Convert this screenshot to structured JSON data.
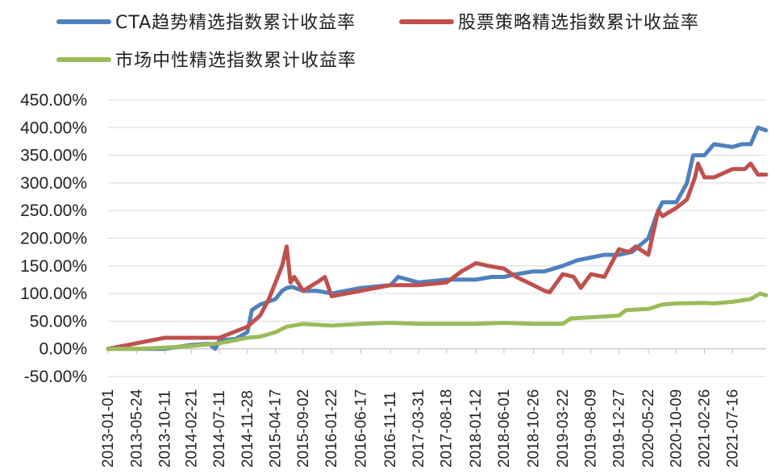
{
  "chart_data": {
    "type": "line",
    "title": "",
    "xlabel": "",
    "ylabel": "",
    "ylim": [
      -0.5,
      4.5
    ],
    "y_ticks": [
      "450.00%",
      "400.00%",
      "350.00%",
      "300.00%",
      "250.00%",
      "200.00%",
      "150.00%",
      "100.00%",
      "50.00%",
      "0.00%",
      "-50.00%"
    ],
    "y_tick_values": [
      4.5,
      4.0,
      3.5,
      3.0,
      2.5,
      2.0,
      1.5,
      1.0,
      0.5,
      0.0,
      -0.5
    ],
    "x_range": [
      "2013-01-01",
      "2021-12-31"
    ],
    "x_ticks": [
      "2013-01-01",
      "2013-05-24",
      "2013-10-11",
      "2014-02-21",
      "2014-07-11",
      "2014-11-28",
      "2015-04-17",
      "2015-09-02",
      "2016-01-22",
      "2016-06-17",
      "2016-11-11",
      "2017-03-31",
      "2017-08-18",
      "2018-01-12",
      "2018-06-01",
      "2018-10-26",
      "2019-03-22",
      "2019-08-09",
      "2019-12-27",
      "2020-05-22",
      "2020-10-09",
      "2021-02-26",
      "2021-07-16"
    ],
    "gridlines": "horizontal",
    "legend_position": "top-left",
    "series": [
      {
        "name": "CTA趋势精选指数累计收益率",
        "color": "#4F81BD",
        "x": [
          "2013-01-01",
          "2013-05-24",
          "2013-10-11",
          "2014-02-21",
          "2014-05-20",
          "2014-06-20",
          "2014-07-11",
          "2014-09-30",
          "2014-11-28",
          "2014-12-20",
          "2015-01-30",
          "2015-04-17",
          "2015-05-20",
          "2015-06-12",
          "2015-07-08",
          "2015-09-02",
          "2015-11-10",
          "2016-01-22",
          "2016-06-17",
          "2016-11-11",
          "2016-12-20",
          "2017-03-31",
          "2017-08-18",
          "2018-01-12",
          "2018-04-01",
          "2018-06-01",
          "2018-08-01",
          "2018-10-26",
          "2018-12-20",
          "2019-03-22",
          "2019-06-01",
          "2019-08-09",
          "2019-10-15",
          "2019-12-27",
          "2020-03-01",
          "2020-05-22",
          "2020-07-10",
          "2020-07-31",
          "2020-10-09",
          "2020-12-01",
          "2021-01-01",
          "2021-02-26",
          "2021-04-15",
          "2021-07-16",
          "2021-09-01",
          "2021-10-15",
          "2021-11-20",
          "2021-12-31"
        ],
        "values": [
          0.0,
          0.0,
          0.0,
          0.07,
          0.09,
          0.0,
          0.15,
          0.18,
          0.3,
          0.7,
          0.8,
          0.9,
          1.05,
          1.1,
          1.12,
          1.05,
          1.05,
          1.0,
          1.1,
          1.15,
          1.3,
          1.2,
          1.25,
          1.25,
          1.3,
          1.3,
          1.35,
          1.4,
          1.4,
          1.5,
          1.6,
          1.65,
          1.7,
          1.7,
          1.75,
          2.0,
          2.5,
          2.65,
          2.65,
          3.0,
          3.5,
          3.5,
          3.7,
          3.65,
          3.7,
          3.7,
          4.0,
          3.95
        ]
      },
      {
        "name": "股票策略精选指数累计收益率",
        "color": "#C0504D",
        "x": [
          "2013-01-01",
          "2013-05-24",
          "2013-10-11",
          "2014-02-21",
          "2014-07-11",
          "2014-11-28",
          "2015-01-30",
          "2015-03-15",
          "2015-04-17",
          "2015-05-20",
          "2015-06-12",
          "2015-07-01",
          "2015-07-20",
          "2015-09-02",
          "2015-11-10",
          "2015-12-20",
          "2016-01-22",
          "2016-06-17",
          "2016-11-11",
          "2017-03-31",
          "2017-08-18",
          "2017-11-01",
          "2018-01-12",
          "2018-03-15",
          "2018-06-01",
          "2018-08-01",
          "2018-10-26",
          "2018-12-20",
          "2019-01-15",
          "2019-03-22",
          "2019-05-15",
          "2019-06-20",
          "2019-08-09",
          "2019-10-15",
          "2019-12-27",
          "2020-02-15",
          "2020-03-20",
          "2020-05-22",
          "2020-07-10",
          "2020-08-01",
          "2020-10-09",
          "2020-12-01",
          "2021-01-10",
          "2021-01-25",
          "2021-02-26",
          "2021-04-15",
          "2021-07-16",
          "2021-09-15",
          "2021-10-15",
          "2021-11-20",
          "2021-12-31"
        ],
        "values": [
          0.0,
          0.1,
          0.2,
          0.2,
          0.2,
          0.4,
          0.6,
          0.9,
          1.2,
          1.5,
          1.85,
          1.2,
          1.3,
          1.05,
          1.2,
          1.3,
          0.95,
          1.05,
          1.15,
          1.15,
          1.2,
          1.4,
          1.55,
          1.5,
          1.45,
          1.3,
          1.15,
          1.05,
          1.02,
          1.35,
          1.3,
          1.1,
          1.35,
          1.3,
          1.8,
          1.75,
          1.85,
          1.7,
          2.5,
          2.4,
          2.55,
          2.7,
          3.1,
          3.35,
          3.1,
          3.1,
          3.25,
          3.25,
          3.35,
          3.15,
          3.15
        ]
      },
      {
        "name": "市场中性精选指数累计收益率",
        "color": "#9BBB59",
        "x": [
          "2013-01-01",
          "2013-05-24",
          "2013-10-11",
          "2014-02-21",
          "2014-07-11",
          "2014-11-28",
          "2015-01-30",
          "2015-04-17",
          "2015-06-12",
          "2015-09-02",
          "2016-01-22",
          "2016-06-17",
          "2016-11-11",
          "2017-03-31",
          "2017-08-18",
          "2018-01-12",
          "2018-06-01",
          "2018-10-26",
          "2019-01-15",
          "2019-03-22",
          "2019-05-01",
          "2019-08-09",
          "2019-12-27",
          "2020-02-01",
          "2020-05-22",
          "2020-08-01",
          "2020-10-09",
          "2021-02-26",
          "2021-04-15",
          "2021-07-16",
          "2021-10-15",
          "2021-12-01",
          "2021-12-31"
        ],
        "values": [
          0.0,
          0.0,
          0.02,
          0.05,
          0.1,
          0.2,
          0.22,
          0.3,
          0.4,
          0.45,
          0.42,
          0.45,
          0.47,
          0.45,
          0.45,
          0.45,
          0.47,
          0.45,
          0.45,
          0.45,
          0.55,
          0.57,
          0.6,
          0.7,
          0.72,
          0.8,
          0.82,
          0.83,
          0.82,
          0.85,
          0.9,
          1.0,
          0.97
        ]
      }
    ]
  }
}
